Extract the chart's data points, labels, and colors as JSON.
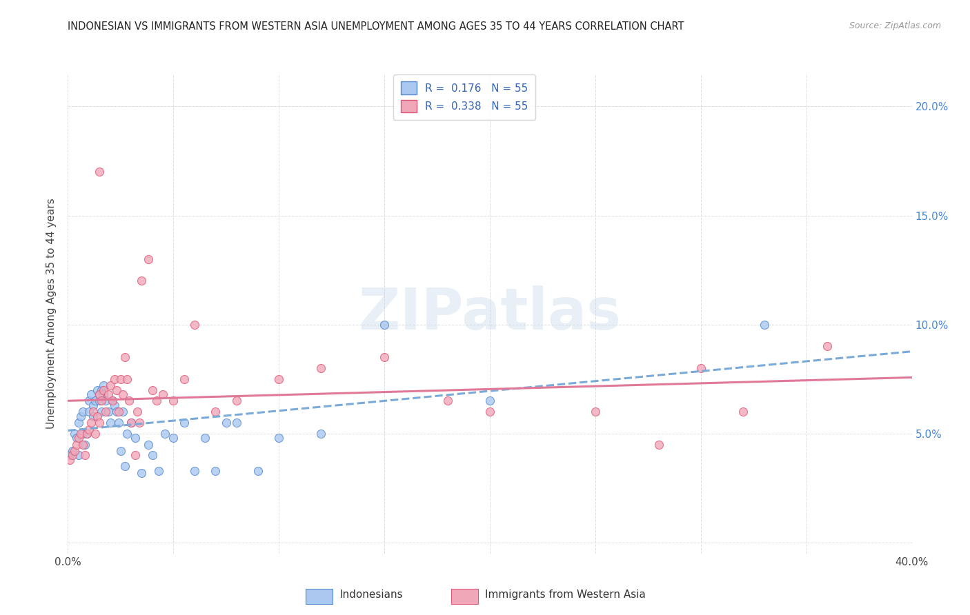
{
  "title": "INDONESIAN VS IMMIGRANTS FROM WESTERN ASIA UNEMPLOYMENT AMONG AGES 35 TO 44 YEARS CORRELATION CHART",
  "source": "Source: ZipAtlas.com",
  "ylabel": "Unemployment Among Ages 35 to 44 years",
  "xlim": [
    0.0,
    0.4
  ],
  "ylim": [
    -0.005,
    0.215
  ],
  "y_ticks_right": [
    0.05,
    0.1,
    0.15,
    0.2
  ],
  "y_tick_labels_right": [
    "5.0%",
    "10.0%",
    "15.0%",
    "20.0%"
  ],
  "indonesian_R": "0.176",
  "indonesian_N": "55",
  "western_asia_R": "0.338",
  "western_asia_N": "55",
  "indonesian_color": "#aac8f0",
  "western_asia_color": "#f0a8b8",
  "indonesian_edge_color": "#5588cc",
  "western_asia_edge_color": "#e05878",
  "indonesian_line_color": "#7aaad8",
  "western_asia_line_color": "#e07898",
  "legend_label_indonesian": "Indonesians",
  "legend_label_western": "Immigrants from Western Asia",
  "indonesian_x": [
    0.001,
    0.002,
    0.003,
    0.004,
    0.005,
    0.005,
    0.006,
    0.007,
    0.007,
    0.008,
    0.009,
    0.01,
    0.01,
    0.011,
    0.012,
    0.012,
    0.013,
    0.014,
    0.015,
    0.015,
    0.016,
    0.016,
    0.017,
    0.017,
    0.018,
    0.019,
    0.02,
    0.021,
    0.022,
    0.023,
    0.024,
    0.025,
    0.026,
    0.027,
    0.028,
    0.03,
    0.032,
    0.035,
    0.038,
    0.04,
    0.043,
    0.046,
    0.05,
    0.055,
    0.06,
    0.065,
    0.07,
    0.075,
    0.08,
    0.09,
    0.1,
    0.12,
    0.15,
    0.2,
    0.33
  ],
  "indonesian_y": [
    0.04,
    0.042,
    0.05,
    0.048,
    0.055,
    0.04,
    0.058,
    0.05,
    0.06,
    0.045,
    0.05,
    0.065,
    0.06,
    0.068,
    0.063,
    0.058,
    0.065,
    0.07,
    0.065,
    0.068,
    0.07,
    0.06,
    0.072,
    0.068,
    0.065,
    0.06,
    0.055,
    0.065,
    0.063,
    0.06,
    0.055,
    0.042,
    0.06,
    0.035,
    0.05,
    0.055,
    0.048,
    0.032,
    0.045,
    0.04,
    0.033,
    0.05,
    0.048,
    0.055,
    0.033,
    0.048,
    0.033,
    0.055,
    0.055,
    0.033,
    0.048,
    0.05,
    0.1,
    0.065,
    0.1
  ],
  "western_x": [
    0.001,
    0.002,
    0.003,
    0.004,
    0.005,
    0.006,
    0.007,
    0.008,
    0.009,
    0.01,
    0.011,
    0.012,
    0.013,
    0.014,
    0.015,
    0.015,
    0.016,
    0.017,
    0.018,
    0.019,
    0.02,
    0.021,
    0.022,
    0.023,
    0.024,
    0.025,
    0.026,
    0.027,
    0.028,
    0.029,
    0.03,
    0.032,
    0.033,
    0.034,
    0.035,
    0.038,
    0.04,
    0.042,
    0.045,
    0.05,
    0.055,
    0.06,
    0.07,
    0.08,
    0.1,
    0.12,
    0.15,
    0.18,
    0.2,
    0.25,
    0.28,
    0.3,
    0.32,
    0.36,
    0.015
  ],
  "western_y": [
    0.038,
    0.04,
    0.042,
    0.045,
    0.048,
    0.05,
    0.045,
    0.04,
    0.05,
    0.052,
    0.055,
    0.06,
    0.05,
    0.058,
    0.055,
    0.068,
    0.065,
    0.07,
    0.06,
    0.068,
    0.072,
    0.065,
    0.075,
    0.07,
    0.06,
    0.075,
    0.068,
    0.085,
    0.075,
    0.065,
    0.055,
    0.04,
    0.06,
    0.055,
    0.12,
    0.13,
    0.07,
    0.065,
    0.068,
    0.065,
    0.075,
    0.1,
    0.06,
    0.065,
    0.075,
    0.08,
    0.085,
    0.065,
    0.06,
    0.06,
    0.045,
    0.08,
    0.06,
    0.09,
    0.17
  ],
  "watermark": "ZIPatlas",
  "background_color": "#ffffff",
  "grid_color": "#dddddd"
}
